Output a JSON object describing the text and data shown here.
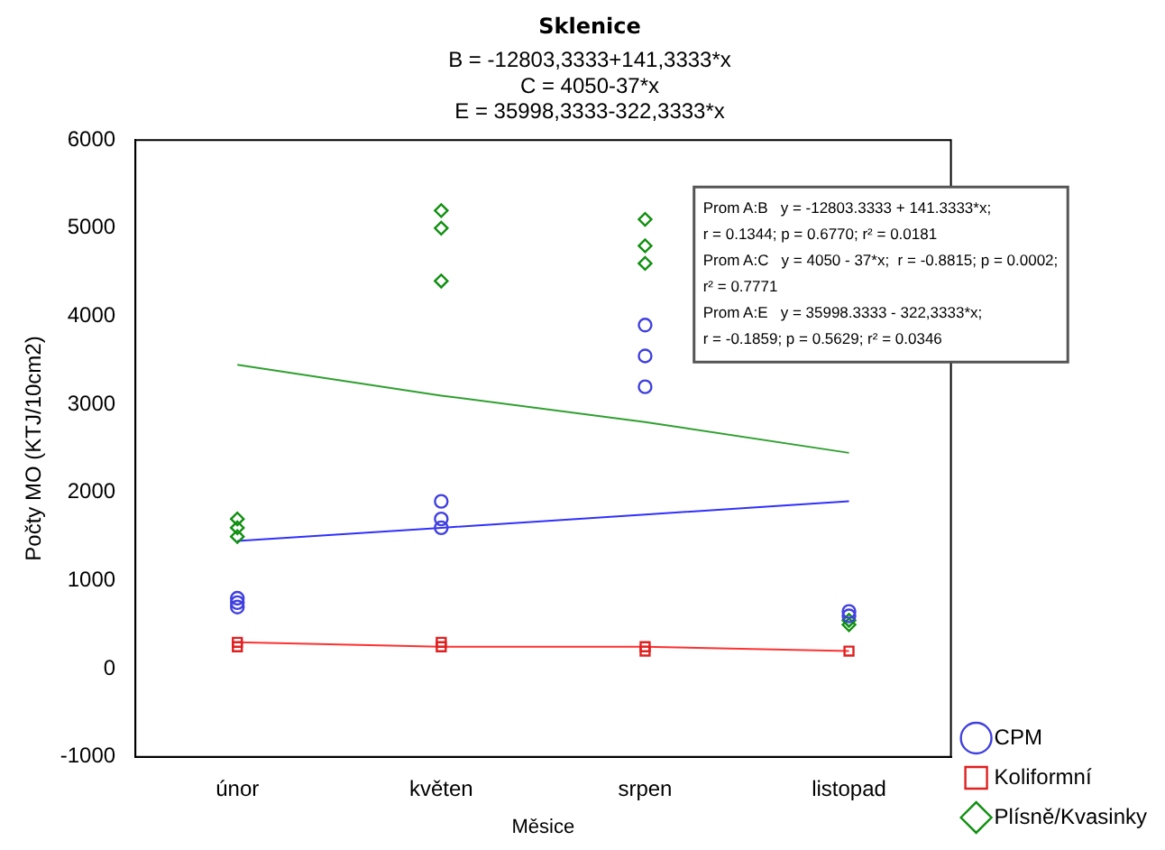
{
  "chart_data": {
    "type": "scatter",
    "title": "Sklenice",
    "subtitle": "B = -12803,3333+141,3333*x\nC = 4050-37*x\nE = 35998,3333-322,3333*x",
    "xlabel": "Měsice",
    "ylabel": "Počty MO (KTJ/10cm2)",
    "categories": [
      "únor",
      "květen",
      "srpen",
      "listopad"
    ],
    "ylim": [
      -1000,
      6000
    ],
    "yticks": [
      -1000,
      0,
      1000,
      2000,
      3000,
      4000,
      5000,
      6000
    ],
    "grid": false,
    "legend": "bottom right",
    "series": [
      {
        "name": "CPM",
        "marker": "circle",
        "color": "#4040e0",
        "x": [
          "únor",
          "únor",
          "únor",
          "květen",
          "květen",
          "květen",
          "srpen",
          "srpen",
          "srpen",
          "listopad",
          "listopad"
        ],
        "values": [
          800,
          750,
          700,
          1900,
          1700,
          1600,
          3900,
          3550,
          3200,
          650,
          600
        ]
      },
      {
        "name": "Koliformní",
        "marker": "square",
        "color": "#e02020",
        "x": [
          "únor",
          "únor",
          "květen",
          "květen",
          "srpen",
          "srpen",
          "listopad"
        ],
        "values": [
          300,
          250,
          300,
          250,
          250,
          200,
          200
        ]
      },
      {
        "name": "Plísně/Kvasinky",
        "marker": "diamond",
        "color": "#109010",
        "x": [
          "únor",
          "únor",
          "únor",
          "květen",
          "květen",
          "květen",
          "srpen",
          "srpen",
          "srpen",
          "listopad",
          "listopad"
        ],
        "values": [
          1700,
          1600,
          1500,
          5200,
          5000,
          4400,
          5100,
          4800,
          4600,
          550,
          500
        ]
      },
      {
        "type": "line",
        "color": "#3030ff",
        "values": [
          1450,
          1600,
          1750,
          1900
        ]
      },
      {
        "type": "line",
        "color": "#ff3030",
        "values": [
          300,
          250,
          250,
          200
        ]
      },
      {
        "type": "line",
        "color": "#30a030",
        "values": [
          3450,
          3100,
          2800,
          2450
        ]
      }
    ],
    "annotations": [
      "Prom A:B   y = -12803.3333 + 141.3333*x;",
      "r = 0.1344; p = 0.6770; r² = 0.0181",
      "Prom A:C   y = 4050 - 37*x;  r = -0.8815; p = 0.0002;",
      "r² = 0.7771",
      "Prom A:E   y = 35998.3333 - 322,3333*x;",
      "r = -0.1859; p = 0.5629; r² = 0.0346"
    ]
  }
}
